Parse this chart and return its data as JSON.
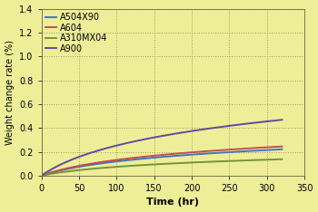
{
  "background_color": "#eeee99",
  "grid_color": "#999966",
  "xlabel": "Time (hr)",
  "ylabel": "Weight change rate (%)",
  "xlim": [
    0,
    350
  ],
  "ylim": [
    0.0,
    1.4
  ],
  "xticks": [
    0,
    50,
    100,
    150,
    200,
    250,
    300,
    350
  ],
  "yticks": [
    0.0,
    0.2,
    0.4,
    0.6,
    0.8,
    1.0,
    1.2,
    1.4
  ],
  "series": [
    {
      "label": "A504X90",
      "color": "#4472c4",
      "a": 0.1155,
      "b": 0.018
    },
    {
      "label": "A604",
      "color": "#c0504d",
      "a": 0.128,
      "b": 0.018
    },
    {
      "label": "A310MX04",
      "color": "#76923c",
      "a": 0.072,
      "b": 0.018
    },
    {
      "label": "A900",
      "color": "#604a9e",
      "a": 0.245,
      "b": 0.018
    }
  ],
  "legend_fontsize": 7,
  "axis_label_fontsize": 8,
  "tick_fontsize": 7,
  "xlabel_fontweight": "bold",
  "linewidth": 1.4
}
